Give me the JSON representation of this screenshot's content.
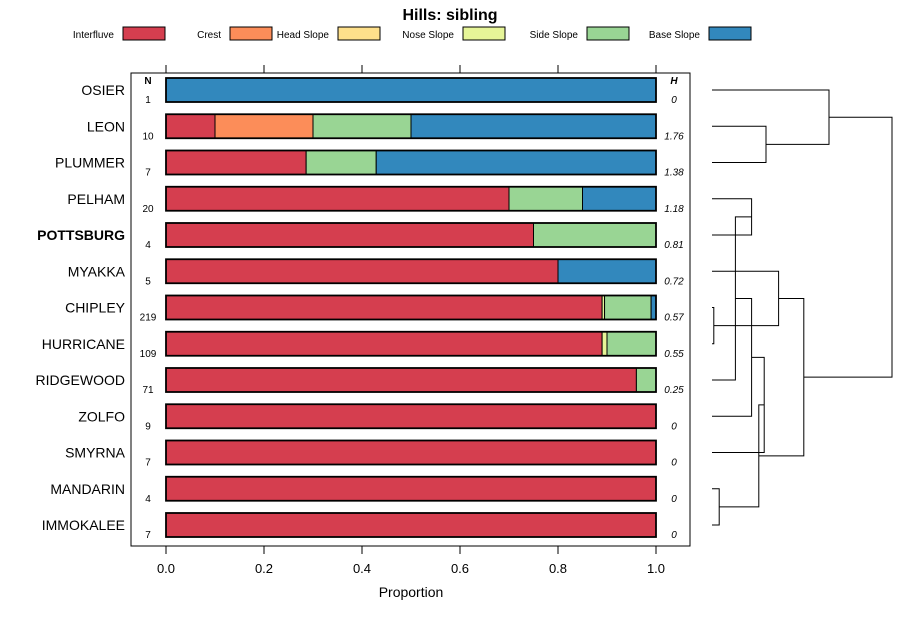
{
  "chart_data": {
    "type": "bar",
    "orientation": "horizontal",
    "stacked": true,
    "title": "Hills: sibling",
    "xlabel": "Proportion",
    "ylabel": "",
    "xlim": [
      0,
      1
    ],
    "x_ticks": [
      "0.0",
      "0.2",
      "0.4",
      "0.6",
      "0.8",
      "1.0"
    ],
    "n_header": "N",
    "h_header": "H",
    "legend_position": "top",
    "series": [
      {
        "name": "Interfluve",
        "color": "#d53e4f"
      },
      {
        "name": "Crest",
        "color": "#fc8d59"
      },
      {
        "name": "Head Slope",
        "color": "#fee08b"
      },
      {
        "name": "Nose Slope",
        "color": "#e6f598"
      },
      {
        "name": "Side Slope",
        "color": "#99d594"
      },
      {
        "name": "Base Slope",
        "color": "#3288bd"
      }
    ],
    "categories": [
      {
        "name": "OSIER",
        "n": "1",
        "h": "0",
        "bold": false,
        "values": [
          0,
          0,
          0,
          0,
          0,
          1.0
        ]
      },
      {
        "name": "LEON",
        "n": "10",
        "h": "1.76",
        "bold": false,
        "values": [
          0.1,
          0.2,
          0,
          0,
          0.2,
          0.5
        ]
      },
      {
        "name": "PLUMMER",
        "n": "7",
        "h": "1.38",
        "bold": false,
        "values": [
          0.286,
          0,
          0,
          0,
          0.143,
          0.571
        ]
      },
      {
        "name": "PELHAM",
        "n": "20",
        "h": "1.18",
        "bold": false,
        "values": [
          0.7,
          0,
          0,
          0,
          0.15,
          0.15
        ]
      },
      {
        "name": "POTTSBURG",
        "n": "4",
        "h": "0.81",
        "bold": true,
        "values": [
          0.75,
          0,
          0,
          0,
          0.25,
          0
        ]
      },
      {
        "name": "MYAKKA",
        "n": "5",
        "h": "0.72",
        "bold": false,
        "values": [
          0.8,
          0,
          0,
          0,
          0,
          0.2
        ]
      },
      {
        "name": "CHIPLEY",
        "n": "219",
        "h": "0.57",
        "bold": false,
        "values": [
          0.89,
          0,
          0,
          0.005,
          0.095,
          0.01
        ]
      },
      {
        "name": "HURRICANE",
        "n": "109",
        "h": "0.55",
        "bold": false,
        "values": [
          0.89,
          0,
          0,
          0.01,
          0.1,
          0
        ]
      },
      {
        "name": "RIDGEWOOD",
        "n": "71",
        "h": "0.25",
        "bold": false,
        "values": [
          0.96,
          0,
          0,
          0,
          0.04,
          0
        ]
      },
      {
        "name": "ZOLFO",
        "n": "9",
        "h": "0",
        "bold": false,
        "values": [
          1.0,
          0,
          0,
          0,
          0,
          0
        ]
      },
      {
        "name": "SMYRNA",
        "n": "7",
        "h": "0",
        "bold": false,
        "values": [
          1.0,
          0,
          0,
          0,
          0,
          0
        ]
      },
      {
        "name": "MANDARIN",
        "n": "4",
        "h": "0",
        "bold": false,
        "values": [
          1.0,
          0,
          0,
          0,
          0,
          0
        ]
      },
      {
        "name": "IMMOKALEE",
        "n": "7",
        "h": "0",
        "bold": false,
        "values": [
          1.0,
          0,
          0,
          0,
          0,
          0
        ]
      }
    ],
    "dendrogram_merges": [
      {
        "a": 1,
        "b": 2,
        "height": 0.3
      },
      {
        "a": 3,
        "b": 4,
        "height": 0.22
      },
      {
        "a": 6,
        "b": 7,
        "height": 0.01
      },
      {
        "a": 11,
        "b": 12,
        "height": 0.04
      },
      {
        "a": "m3",
        "b": 5,
        "height": 0.37
      },
      {
        "a": "m2",
        "b": 8,
        "height": 0.13
      },
      {
        "a": "m6",
        "b": 9,
        "height": 0.22
      },
      {
        "a": "m7",
        "b": 10,
        "height": 0.29
      },
      {
        "a": "m4",
        "b": "m8",
        "height": 0.26
      },
      {
        "a": "m5",
        "b": "m9",
        "height": 0.51
      },
      {
        "a": 0,
        "b": "m1",
        "height": 0.65
      },
      {
        "a": "m11",
        "b": "m10",
        "height": 1.0
      }
    ]
  }
}
